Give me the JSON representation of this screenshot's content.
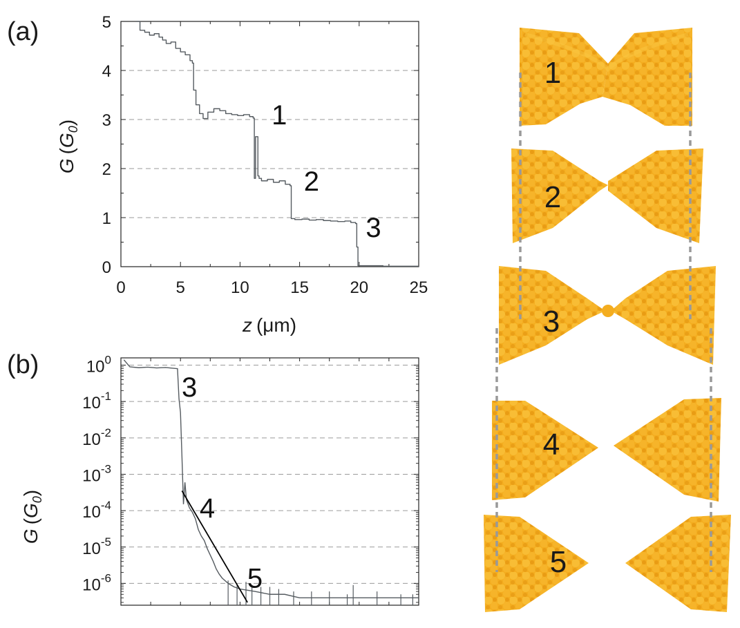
{
  "panel_a": {
    "label": "(a)"
  },
  "panel_b": {
    "label": "(b)"
  },
  "chart_data": [
    {
      "type": "line",
      "panel": "(a)",
      "xlabel": "z (μm)",
      "xlabel_parts": {
        "var": "z",
        "unit": "(μm)"
      },
      "ylabel": "G (G0)",
      "ylabel_parts": {
        "var": "G",
        "unit_open": "(",
        "unit_var": "G",
        "unit_sub": "0",
        "unit_close": ")"
      },
      "xlim": [
        0,
        25
      ],
      "ylim": [
        0,
        5
      ],
      "xticks": [
        "0",
        "5",
        "10",
        "15",
        "20",
        "25"
      ],
      "yticks": [
        "0",
        "1",
        "2",
        "3",
        "4",
        "5"
      ],
      "grid": "horizontal dashed",
      "series": [
        {
          "color": "#555b60",
          "x": [
            1.3,
            1.6,
            2.0,
            2.4,
            2.8,
            3.2,
            3.5,
            3.8,
            4.2,
            4.6,
            5.0,
            5.4,
            5.8,
            6.0,
            6.1,
            6.3,
            6.6,
            6.9,
            7.3,
            7.8,
            8.3,
            8.8,
            9.3,
            9.8,
            10.3,
            10.8,
            11.1,
            11.2,
            11.3,
            11.5,
            11.6,
            11.8,
            12.3,
            12.8,
            13.3,
            13.8,
            14.2,
            14.3,
            14.6,
            15.2,
            15.8,
            16.4,
            17.0,
            17.6,
            18.2,
            18.8,
            19.3,
            19.7,
            19.8,
            19.9,
            21.0,
            22.0,
            23.0,
            24.0,
            25.0
          ],
          "y": [
            5.0,
            4.82,
            4.78,
            4.72,
            4.75,
            4.68,
            4.62,
            4.55,
            4.58,
            4.45,
            4.38,
            4.32,
            4.2,
            4.15,
            3.6,
            3.3,
            3.12,
            3.02,
            3.15,
            3.22,
            3.18,
            3.12,
            3.1,
            3.08,
            3.1,
            3.06,
            3.03,
            1.8,
            2.65,
            1.85,
            1.8,
            1.75,
            1.78,
            1.72,
            1.75,
            1.68,
            1.65,
            0.98,
            0.96,
            0.97,
            0.95,
            0.96,
            0.94,
            0.93,
            0.92,
            0.93,
            0.9,
            0.88,
            0.4,
            0.02,
            0.02,
            0.01,
            0.01,
            0.01,
            0.01
          ]
        }
      ],
      "annotations": [
        {
          "text": "1",
          "x": 13.3,
          "y": 3.1
        },
        {
          "text": "2",
          "x": 16.0,
          "y": 1.75
        },
        {
          "text": "3",
          "x": 21.2,
          "y": 0.8
        }
      ]
    },
    {
      "type": "line",
      "panel": "(b)",
      "ylabel": "G (G0)",
      "ylabel_parts": {
        "var": "G",
        "unit_open": "(",
        "unit_var": "G",
        "unit_sub": "0",
        "unit_close": ")"
      },
      "yscale": "log",
      "ylim_exp": [
        -6.6,
        0.2
      ],
      "xlim": [
        0,
        10
      ],
      "yticks": [
        {
          "base": "10",
          "exp": "0",
          "value": 1
        },
        {
          "base": "10",
          "exp": "-1",
          "value": 0.1
        },
        {
          "base": "10",
          "exp": "-2",
          "value": 0.01
        },
        {
          "base": "10",
          "exp": "-3",
          "value": 0.001
        },
        {
          "base": "10",
          "exp": "-4",
          "value": 0.0001
        },
        {
          "base": "10",
          "exp": "-5",
          "value": 1e-05
        },
        {
          "base": "10",
          "exp": "-6",
          "value": 1e-06
        }
      ],
      "grid": "horizontal dashed",
      "series": [
        {
          "color": "#555b60",
          "x": [
            0.1,
            0.3,
            0.6,
            0.9,
            1.2,
            1.5,
            1.7,
            1.9,
            1.95,
            2.0,
            2.05,
            2.1,
            2.15,
            2.2,
            2.3,
            2.4,
            2.5,
            2.6,
            2.7,
            2.8,
            2.9,
            3.0,
            3.1,
            3.2,
            3.3,
            3.4,
            3.6,
            3.8,
            4.0,
            4.5,
            5.0,
            5.5,
            6.0,
            6.5,
            7.0,
            7.5,
            8.0,
            8.5,
            9.0,
            9.5,
            10.0
          ],
          "y": [
            1.4,
            0.9,
            0.85,
            0.88,
            0.84,
            0.86,
            0.83,
            0.8,
            0.12,
            0.05,
            0.003,
            0.00015,
            0.0006,
            0.0002,
            0.00012,
            9e-05,
            6e-05,
            3e-05,
            2e-05,
            1.5e-05,
            9e-06,
            6e-06,
            4e-06,
            2.5e-06,
            1.8e-06,
            1.4e-06,
            1e-06,
            8e-07,
            7e-07,
            6e-07,
            5e-07,
            5e-07,
            4e-07,
            4e-07,
            4e-07,
            4e-07,
            4e-07,
            4e-07,
            4e-07,
            4e-07,
            4e-07
          ]
        },
        {
          "color": "#000000",
          "x": [
            2.05,
            4.25
          ],
          "y": [
            0.00035,
            3e-07
          ]
        }
      ],
      "annotations": [
        {
          "text": "3",
          "x": 2.3,
          "y": 0.25
        },
        {
          "text": "4",
          "x": 2.9,
          "y": 0.00012
        },
        {
          "text": "5",
          "x": 4.5,
          "y": 1.4e-06
        }
      ]
    }
  ],
  "illustration": {
    "color_main": "#f5b325",
    "color_shade": "#e89a12",
    "guide_color": "#999999",
    "stages": [
      {
        "label": "1",
        "state": "narrow neck"
      },
      {
        "label": "2",
        "state": "thinner neck"
      },
      {
        "label": "3",
        "state": "single-atom contact"
      },
      {
        "label": "4",
        "state": "broken, small gap"
      },
      {
        "label": "5",
        "state": "broken, larger gap"
      }
    ]
  }
}
